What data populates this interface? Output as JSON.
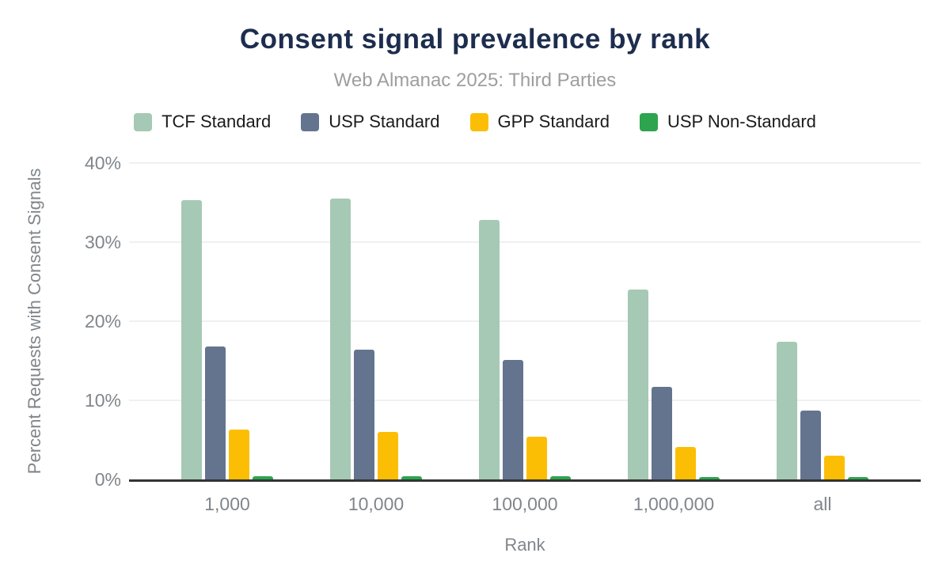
{
  "page": {
    "title": "Consent signal prevalence by rank",
    "subtitle": "Web Almanac 2025: Third Parties"
  },
  "colors": {
    "title_text": "#1d2d4e",
    "subtitle_text": "#9e9e9e",
    "axis_text": "#80868b",
    "legend_text": "#1b1b1b",
    "gridline": "#f0f0f0",
    "axis_line": "#333333"
  },
  "chart_data": {
    "type": "bar",
    "title": "Consent signal prevalence by rank",
    "subtitle": "Web Almanac 2025: Third Parties",
    "xlabel": "Rank",
    "ylabel": "Percent Requests with Consent Signals",
    "categories": [
      "1,000",
      "10,000",
      "100,000",
      "1,000,000",
      "all"
    ],
    "series": [
      {
        "name": "TCF Standard",
        "color": "#a5c9b4",
        "values": [
          35.3,
          35.5,
          32.8,
          24.0,
          17.4
        ]
      },
      {
        "name": "USP Standard",
        "color": "#64748f",
        "values": [
          16.8,
          16.4,
          15.1,
          11.7,
          8.7
        ]
      },
      {
        "name": "GPP Standard",
        "color": "#fcbe04",
        "values": [
          6.3,
          6.0,
          5.4,
          4.1,
          3.0
        ]
      },
      {
        "name": "USP Non-Standard",
        "color": "#2da44e",
        "values": [
          0.4,
          0.4,
          0.4,
          0.3,
          0.25
        ]
      }
    ],
    "ylim": [
      0,
      40
    ],
    "yticks": [
      {
        "value": 0,
        "label": "0%"
      },
      {
        "value": 10,
        "label": "10%"
      },
      {
        "value": 20,
        "label": "20%"
      },
      {
        "value": 30,
        "label": "30%"
      },
      {
        "value": 40,
        "label": "40%"
      }
    ],
    "grid": true,
    "legend_position": "top"
  }
}
